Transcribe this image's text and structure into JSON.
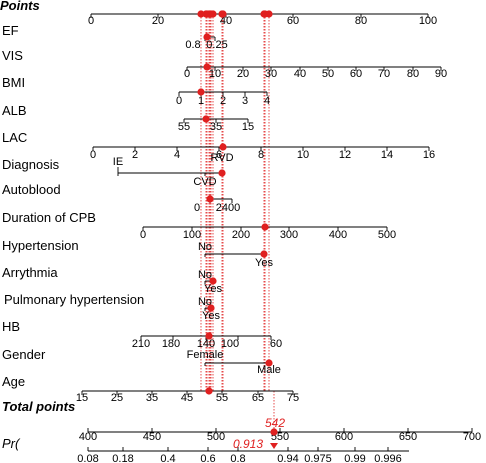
{
  "chart_data": {
    "type": "nomogram",
    "rows": [
      {
        "label": "Points",
        "kind": "points",
        "ticks": [
          0,
          20,
          40,
          60,
          80,
          100
        ],
        "scale": [
          0,
          100
        ]
      },
      {
        "label": "EF",
        "kind": "continuous",
        "ticks": [
          0.8,
          0.25
        ],
        "marker": 0.6
      },
      {
        "label": "VIS",
        "kind": "continuous",
        "ticks": [
          0,
          10,
          20,
          30,
          40,
          50,
          60,
          70,
          80,
          90
        ],
        "marker": 5
      },
      {
        "label": "BMI",
        "kind": "continuous",
        "ticks": [
          0,
          1,
          2,
          3,
          4
        ],
        "marker": 1
      },
      {
        "label": "ALB",
        "kind": "continuous",
        "ticks": [
          55,
          35,
          15
        ],
        "marker": 40
      },
      {
        "label": "LAC",
        "kind": "continuous",
        "ticks": [
          0,
          2,
          4,
          6,
          8,
          10,
          12,
          14,
          16
        ],
        "marker": 6
      },
      {
        "label": "Diagnosis",
        "kind": "categorical",
        "categories": [
          "IE",
          "RVD",
          "CVD"
        ],
        "marker": "CVD"
      },
      {
        "label": "Autoblood",
        "kind": "continuous",
        "ticks": [
          0,
          2400
        ],
        "marker": 800
      },
      {
        "label": "Duration of CPB",
        "kind": "continuous",
        "ticks": [
          0,
          100,
          200,
          300,
          400,
          500
        ],
        "marker": 270
      },
      {
        "label": "Hypertension",
        "kind": "categorical",
        "categories": [
          "No",
          "Yes"
        ],
        "marker": "Yes"
      },
      {
        "label": "Arrythmia",
        "kind": "categorical",
        "categories": [
          "No",
          "Yes"
        ],
        "marker": "Yes"
      },
      {
        "label": "Pulmonary hypertension",
        "kind": "categorical",
        "categories": [
          "No",
          "Yes"
        ],
        "marker": "Yes"
      },
      {
        "label": "HB",
        "kind": "continuous",
        "ticks": [
          210,
          180,
          140,
          100,
          60
        ],
        "marker": 140
      },
      {
        "label": "Gender",
        "kind": "categorical",
        "categories": [
          "Female",
          "Male"
        ],
        "marker": "Male"
      },
      {
        "label": "Age",
        "kind": "continuous",
        "ticks": [
          15,
          25,
          35,
          45,
          55,
          65,
          75
        ],
        "marker": 50
      },
      {
        "label": "Total points",
        "kind": "total",
        "ticks": [
          400,
          450,
          500,
          550,
          600,
          650,
          700
        ],
        "marker": 542
      },
      {
        "label": "Pr(",
        "kind": "probability",
        "ticks": [
          0.08,
          0.18,
          0.4,
          0.6,
          0.8,
          0.94,
          0.975,
          0.99,
          0.996
        ],
        "marker": 0.913
      }
    ],
    "total_points_value": "542",
    "probability_value": "0.913",
    "title": "",
    "colors": {
      "marker": "#e02020",
      "axis": "#000000"
    }
  }
}
